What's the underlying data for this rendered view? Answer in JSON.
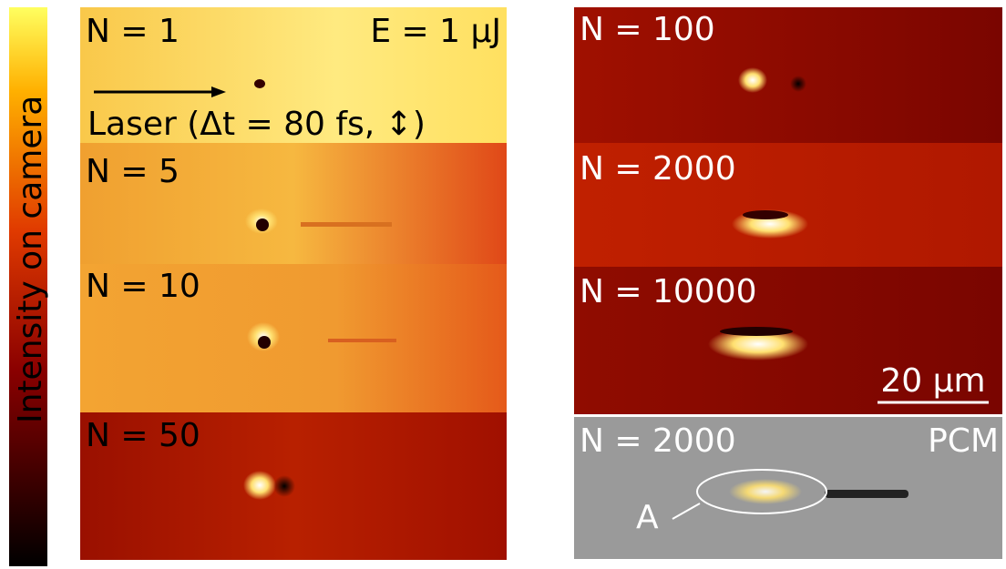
{
  "colorbar": {
    "label": "Intensity on camera"
  },
  "left_panels": [
    {
      "label": "N = 1",
      "energy": "E = 1 µJ",
      "laser": "Laser (Δt = 80 fs, ↕)"
    },
    {
      "label": "N = 5"
    },
    {
      "label": "N = 10"
    },
    {
      "label": "N = 50"
    }
  ],
  "right_panels": [
    {
      "label": "N = 100"
    },
    {
      "label": "N = 2000"
    },
    {
      "label": "N = 10000",
      "scale_bar": "20 µm"
    },
    {
      "label": "N = 2000",
      "mode": "PCM",
      "marker": "A"
    }
  ]
}
